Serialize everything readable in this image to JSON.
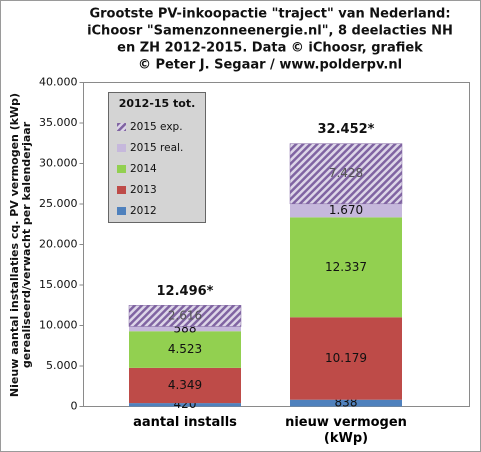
{
  "chart_data": {
    "type": "stacked_bar",
    "title": [
      "Grootste PV-inkoopactie \"traject\" van Nederland:",
      "iChoosr \"Samenzonneenergie.nl\", 8 deelacties NH",
      "en ZH 2012-2015. Data  © iChoosr, grafiek",
      "© Peter J. Segaar / www.polderpv.nl"
    ],
    "ylabel": [
      "Nieuw aantal installaties cq. PV vermogen (kWp)",
      "gerealiseerd/verwacht per kalenderjaar"
    ],
    "categories": [
      "aantal installs",
      "nieuw vermogen (kWp)"
    ],
    "series": [
      {
        "name": "2012",
        "color": "#4f81bd",
        "values": [
          420,
          838
        ],
        "value_labels": [
          "420",
          "838"
        ]
      },
      {
        "name": "2013",
        "color": "#be4b48",
        "values": [
          4349,
          10179
        ],
        "value_labels": [
          "4.349",
          "10.179"
        ]
      },
      {
        "name": "2014",
        "color": "#92d050",
        "values": [
          4523,
          12337
        ],
        "value_labels": [
          "4.523",
          "12.337"
        ]
      },
      {
        "name": "2015 real.",
        "color": "#c6b8dc",
        "values": [
          588,
          1670
        ],
        "value_labels": [
          "588",
          "1.670"
        ]
      },
      {
        "name": "2015 exp.",
        "color": "#8064a2",
        "hatch": true,
        "values": [
          2616,
          7428
        ],
        "value_labels": [
          "2.616",
          "7.428"
        ]
      }
    ],
    "totals": {
      "values": [
        12496,
        32452
      ],
      "value_labels": [
        "12.496*",
        "32.452*"
      ]
    },
    "legend": {
      "title": "2012-15 tot.",
      "corner": "upper left"
    },
    "ylim": [
      0,
      40000
    ],
    "yticks": [
      0,
      {
        "value": 5000,
        "label": "5.000"
      },
      {
        "value": 10000,
        "label": "10.000"
      },
      {
        "value": 15000,
        "label": "15.000"
      },
      {
        "value": 20000,
        "label": "20.000"
      },
      {
        "value": 25000,
        "label": "25.000"
      },
      {
        "value": 30000,
        "label": "30.000"
      },
      {
        "value": 35000,
        "label": "35.000"
      },
      {
        "value": 40000,
        "label": "40.000"
      }
    ],
    "grid": false
  }
}
